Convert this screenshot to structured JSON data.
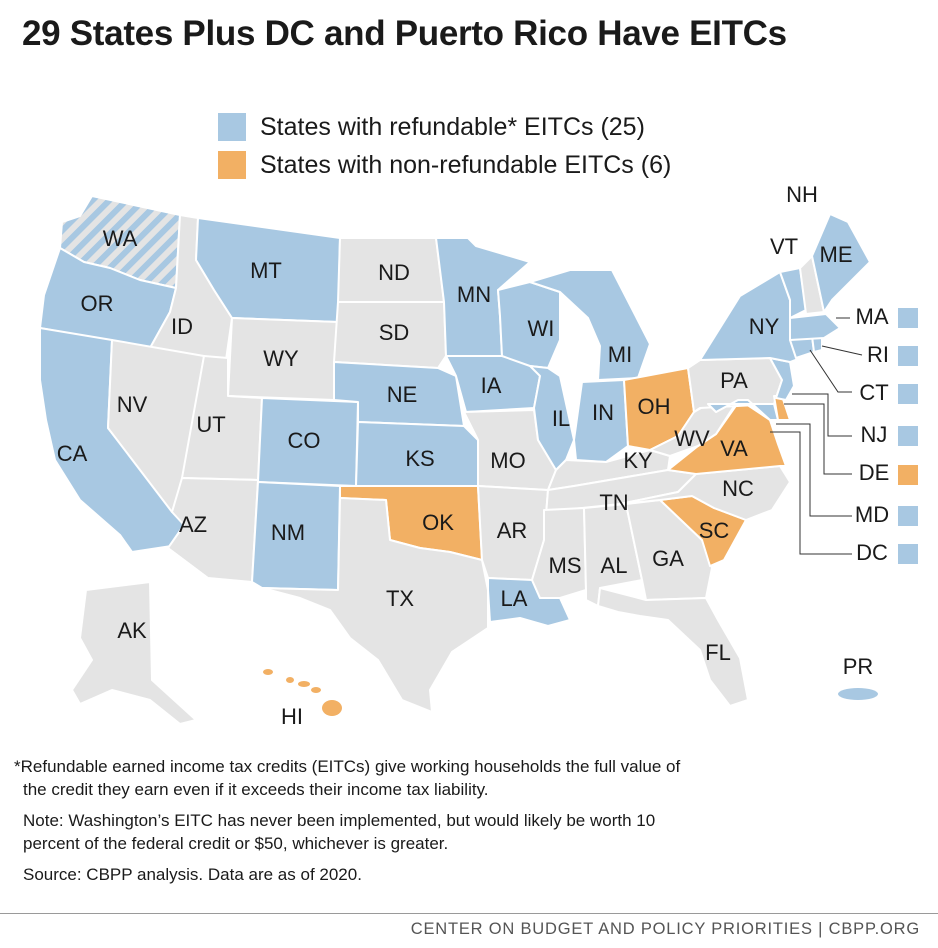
{
  "title": "29 States Plus DC and Puerto Rico Have EITCs",
  "legend": [
    {
      "label": "States with refundable* EITCs (25)",
      "color": "#a8c8e2"
    },
    {
      "label": "States with non-refundable EITCs (6)",
      "color": "#f2b064"
    }
  ],
  "colors": {
    "refundable": "#a8c8e2",
    "nonrefundable": "#f2b064",
    "none": "#e4e4e4",
    "hatch_base": "#e4e4e4"
  },
  "states": {
    "WA": "WA",
    "OR": "OR",
    "CA": "CA",
    "ID": "ID",
    "NV": "NV",
    "MT": "MT",
    "WY": "WY",
    "UT": "UT",
    "AZ": "AZ",
    "CO": "CO",
    "NM": "NM",
    "ND": "ND",
    "SD": "SD",
    "NE": "NE",
    "KS": "KS",
    "OK": "OK",
    "TX": "TX",
    "MN": "MN",
    "IA": "IA",
    "MO": "MO",
    "AR": "AR",
    "LA": "LA",
    "WI": "WI",
    "IL": "IL",
    "MI": "MI",
    "IN": "IN",
    "OH": "OH",
    "KY": "KY",
    "TN": "TN",
    "MS": "MS",
    "AL": "AL",
    "GA": "GA",
    "FL": "FL",
    "SC": "SC",
    "NC": "NC",
    "VA": "VA",
    "WV": "WV",
    "PA": "PA",
    "NY": "NY",
    "VT": "VT",
    "NH": "NH",
    "ME": "ME",
    "AK": "AK",
    "HI": "HI",
    "PR": "PR"
  },
  "callouts": [
    "MA",
    "RI",
    "CT",
    "NJ",
    "DE",
    "MD",
    "DC"
  ],
  "notes": {
    "footnote_line1": "*Refundable earned income tax credits (EITCs) give working households the full value of",
    "footnote_line2": "the credit they earn even if it exceeds their income tax liability.",
    "note_line1": "Note: Washington’s EITC has never been implemented, but would likely be worth 10",
    "note_line2": "percent of the federal credit or $50, whichever is greater.",
    "source": "Source: CBPP analysis. Data are as of 2020."
  },
  "footer": "CENTER ON BUDGET AND POLICY PRIORITIES | CBPP.ORG"
}
